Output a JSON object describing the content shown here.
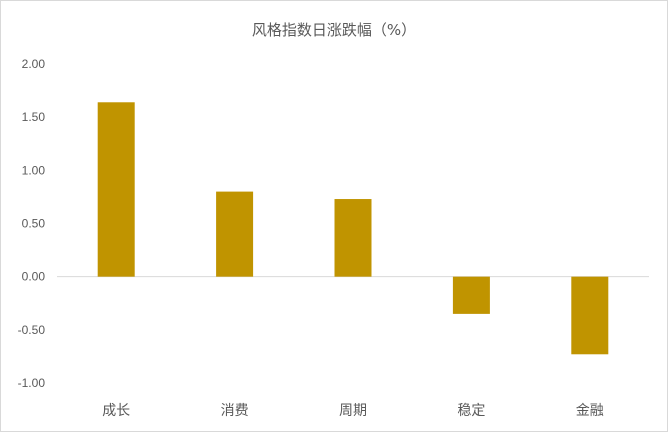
{
  "chart_data": {
    "type": "bar",
    "title": "风格指数日涨跌幅（%）",
    "categories": [
      "成长",
      "消费",
      "周期",
      "稳定",
      "金融"
    ],
    "values": [
      1.64,
      0.8,
      0.73,
      -0.35,
      -0.73
    ],
    "ylim": [
      -1.0,
      2.0
    ],
    "yticks": [
      "2.00",
      "1.50",
      "1.00",
      "0.50",
      "0.00",
      "-0.50",
      "-1.00"
    ],
    "xlabel": "",
    "ylabel": "",
    "grid": false,
    "legend": "none",
    "bar_color": "#C09400"
  }
}
